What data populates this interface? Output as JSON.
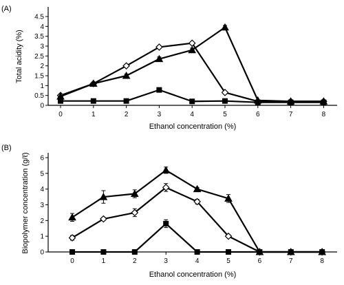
{
  "chart_data": [
    {
      "panel": "(A)",
      "type": "line",
      "xlabel": "Ethanol concentration (%)",
      "ylabel": "Total acidity (%)",
      "x": [
        0,
        1,
        2,
        3,
        4,
        5,
        6,
        7,
        8
      ],
      "xticks": [
        "0",
        "1",
        "2",
        "3",
        "4",
        "5",
        "6",
        "7",
        "8"
      ],
      "yticks": [
        "0",
        "0.5",
        "1",
        "1.5",
        "2",
        "2.5",
        "3",
        "3.5",
        "4",
        "4.5"
      ],
      "ylim": [
        0,
        4.5
      ],
      "series": [
        {
          "marker": "diamond-open",
          "values": [
            0.5,
            1.1,
            2.0,
            2.95,
            3.15,
            0.65,
            0.2,
            0.2,
            0.2
          ],
          "err": [
            0,
            0,
            0,
            0,
            0.05,
            0,
            0,
            0,
            0
          ]
        },
        {
          "marker": "triangle-filled",
          "values": [
            0.45,
            1.1,
            1.5,
            2.35,
            2.8,
            3.95,
            0.25,
            0.2,
            0.2
          ],
          "err": [
            0,
            0.05,
            0.08,
            0.1,
            0.1,
            0.1,
            0,
            0,
            0
          ]
        },
        {
          "marker": "square-filled",
          "values": [
            0.22,
            0.22,
            0.22,
            0.78,
            0.2,
            0.22,
            0.15,
            0.15,
            0.15
          ],
          "err": [
            0,
            0,
            0,
            0.04,
            0,
            0,
            0,
            0,
            0
          ]
        }
      ]
    },
    {
      "panel": "(B)",
      "type": "line",
      "xlabel": "Ethanol concentration (%)",
      "ylabel": "Biopolymer concentration (g/ℓ)",
      "x": [
        0,
        1,
        2,
        3,
        4,
        5,
        6,
        7,
        8
      ],
      "xticks": [
        "0",
        "1",
        "2",
        "3",
        "4",
        "5",
        "6",
        "7",
        "8"
      ],
      "yticks": [
        "0",
        "1",
        "2",
        "3",
        "4",
        "5",
        "6"
      ],
      "ylim": [
        0,
        6
      ],
      "series": [
        {
          "marker": "diamond-open",
          "values": [
            0.9,
            2.1,
            2.5,
            4.1,
            3.2,
            1.0,
            0,
            0,
            0
          ],
          "err": [
            0.15,
            0.1,
            0.25,
            0.25,
            0.15,
            0.1,
            0,
            0,
            0
          ]
        },
        {
          "marker": "triangle-filled",
          "values": [
            2.2,
            3.5,
            3.7,
            5.2,
            4.0,
            3.4,
            0,
            0,
            0
          ],
          "err": [
            0.25,
            0.4,
            0.25,
            0.2,
            0.1,
            0.25,
            0,
            0,
            0
          ]
        },
        {
          "marker": "square-filled",
          "values": [
            0,
            0,
            0,
            1.8,
            0,
            0,
            0,
            0,
            0
          ],
          "err": [
            0,
            0,
            0,
            0.25,
            0,
            0,
            0,
            0,
            0
          ]
        }
      ]
    }
  ]
}
